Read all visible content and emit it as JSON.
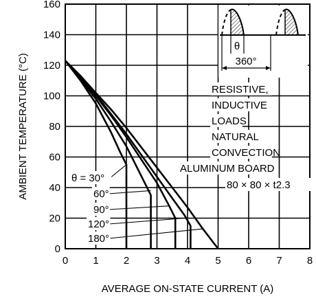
{
  "chart_data": {
    "type": "line",
    "xlabel": "AVERAGE ON-STATE CURRENT  (A)",
    "ylabel": "AMBIENT TEMPERATURE  (°C)",
    "xlim": [
      0,
      8
    ],
    "ylim": [
      0,
      160
    ],
    "xticks": [
      "0",
      "1",
      "2",
      "3",
      "4",
      "5",
      "6",
      "7",
      "8"
    ],
    "yticks": [
      "0",
      "20",
      "40",
      "60",
      "80",
      "100",
      "120",
      "140",
      "160"
    ],
    "grid": true,
    "series": [
      {
        "name": "θ = 30°",
        "x": [
          0,
          0.5,
          1,
          1.5,
          1.8,
          2.0,
          2.0
        ],
        "y": [
          123,
          110,
          95,
          76,
          63,
          55,
          0
        ]
      },
      {
        "name": "60°",
        "x": [
          0,
          0.5,
          1,
          1.5,
          2,
          2.5,
          2.8,
          2.8
        ],
        "y": [
          123,
          111,
          98,
          83,
          67,
          47,
          35,
          0
        ]
      },
      {
        "name": "90°",
        "x": [
          0,
          0.5,
          1,
          1.5,
          2,
          2.5,
          3,
          3.4,
          3.6,
          3.6
        ],
        "y": [
          123,
          112,
          100,
          87,
          73,
          58,
          43,
          28,
          20,
          0
        ]
      },
      {
        "name": "120°",
        "x": [
          0,
          0.5,
          1,
          1.5,
          2,
          2.5,
          3,
          3.5,
          3.9,
          4.1,
          4.1
        ],
        "y": [
          123,
          112,
          101,
          88,
          75,
          61,
          47,
          33,
          22,
          15,
          0
        ]
      },
      {
        "name": "180°",
        "x": [
          0,
          0.5,
          1,
          1.5,
          2,
          2.5,
          3,
          3.5,
          4,
          4.5,
          5
        ],
        "y": [
          123,
          113,
          102,
          91,
          79,
          66,
          53,
          40,
          27,
          13,
          0
        ]
      }
    ],
    "series_labels": [
      "θ = 30°",
      "60°",
      "90°",
      "120°",
      "180°"
    ],
    "annotations": {
      "lines": [
        "RESISTIVE,",
        "INDUCTIVE",
        "LOADS",
        "NATURAL",
        "CONVECTION",
        "ALUMINUM BOARD",
        "80 × 80 × t2.3"
      ],
      "theta": "θ",
      "period": "360°"
    }
  }
}
